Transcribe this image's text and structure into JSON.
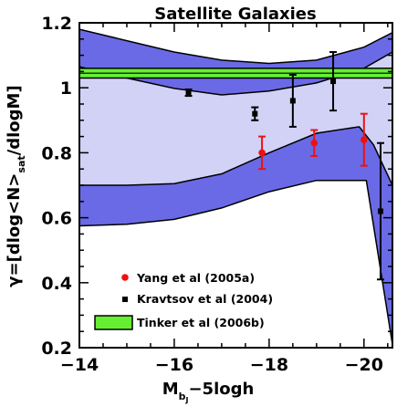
{
  "chart_data": {
    "type": "scatter",
    "title": "Satellite Galaxies",
    "xlabel_parts": {
      "main": "M",
      "sub1": "b",
      "sub2": "J",
      "rest": "−5logh"
    },
    "ylabel": "γ=[dlog<N>sat/dlogM]",
    "ylabel_parts": {
      "pre": "γ=[dlog<N>",
      "sub": "sat",
      "post": "/dlogM]"
    },
    "xlim": [
      -14,
      -20.6
    ],
    "ylim": [
      0.2,
      1.2
    ],
    "x_ticks": [
      {
        "value": -14,
        "label": "−14"
      },
      {
        "value": -16,
        "label": "−16"
      },
      {
        "value": -18,
        "label": "−18"
      },
      {
        "value": -20,
        "label": "−20"
      }
    ],
    "y_ticks": [
      {
        "value": 0.2,
        "label": "0.2"
      },
      {
        "value": 0.4,
        "label": "0.4"
      },
      {
        "value": 0.6,
        "label": "0.6"
      },
      {
        "value": 0.8,
        "label": "0.8"
      },
      {
        "value": 1.0,
        "label": "1"
      },
      {
        "value": 1.2,
        "label": "1.2"
      }
    ],
    "colors": {
      "outer_band": "#6a6ae6",
      "inner_band": "#d2d2f7",
      "tinker": "#66ee33",
      "yang": "#ee1111",
      "kravtsov": "#000000"
    },
    "bands": {
      "upper": {
        "top": [
          [
            -14,
            1.18
          ],
          [
            -15,
            1.145
          ],
          [
            -16,
            1.11
          ],
          [
            -17,
            1.085
          ],
          [
            -18,
            1.075
          ],
          [
            -19,
            1.085
          ],
          [
            -20,
            1.125
          ],
          [
            -20.6,
            1.17
          ]
        ],
        "bottom": [
          [
            -14,
            1.065
          ],
          [
            -15,
            1.03
          ],
          [
            -16,
            0.998
          ],
          [
            -17,
            0.978
          ],
          [
            -18,
            0.99
          ],
          [
            -19,
            1.015
          ],
          [
            -20,
            1.06
          ],
          [
            -20.6,
            1.11
          ]
        ]
      },
      "lower": {
        "top": [
          [
            -14,
            0.7
          ],
          [
            -15,
            0.7
          ],
          [
            -16,
            0.705
          ],
          [
            -17,
            0.735
          ],
          [
            -18,
            0.8
          ],
          [
            -19,
            0.86
          ],
          [
            -19.9,
            0.88
          ],
          [
            -20.2,
            0.825
          ],
          [
            -20.6,
            0.7
          ]
        ],
        "bottom": [
          [
            -14,
            0.575
          ],
          [
            -15,
            0.58
          ],
          [
            -16,
            0.595
          ],
          [
            -17,
            0.63
          ],
          [
            -18,
            0.68
          ],
          [
            -19,
            0.715
          ],
          [
            -20.05,
            0.715
          ],
          [
            -20.6,
            0.21
          ]
        ]
      }
    },
    "tinker_band": {
      "y_low": 1.03,
      "y_high": 1.06,
      "center": 1.045
    },
    "series": [
      {
        "name": "Yang et al (2005a)",
        "marker": "circle",
        "points": [
          {
            "x": -17.85,
            "y": 0.8,
            "err": 0.05
          },
          {
            "x": -18.95,
            "y": 0.83,
            "err": 0.04
          },
          {
            "x": -20.0,
            "y": 0.84,
            "err": 0.08
          }
        ]
      },
      {
        "name": "Kravtsov et al (2004)",
        "marker": "square",
        "points": [
          {
            "x": -16.3,
            "y": 0.985,
            "err": 0.01
          },
          {
            "x": -17.7,
            "y": 0.92,
            "err": 0.02
          },
          {
            "x": -18.5,
            "y": 0.96,
            "err": 0.08
          },
          {
            "x": -19.35,
            "y": 1.02,
            "err": 0.09
          },
          {
            "x": -20.35,
            "y": 0.62,
            "err": 0.21
          }
        ]
      },
      {
        "name": "Tinker et al (2006b)",
        "marker": "box"
      }
    ],
    "legend": {
      "position": "bottom-left"
    }
  }
}
